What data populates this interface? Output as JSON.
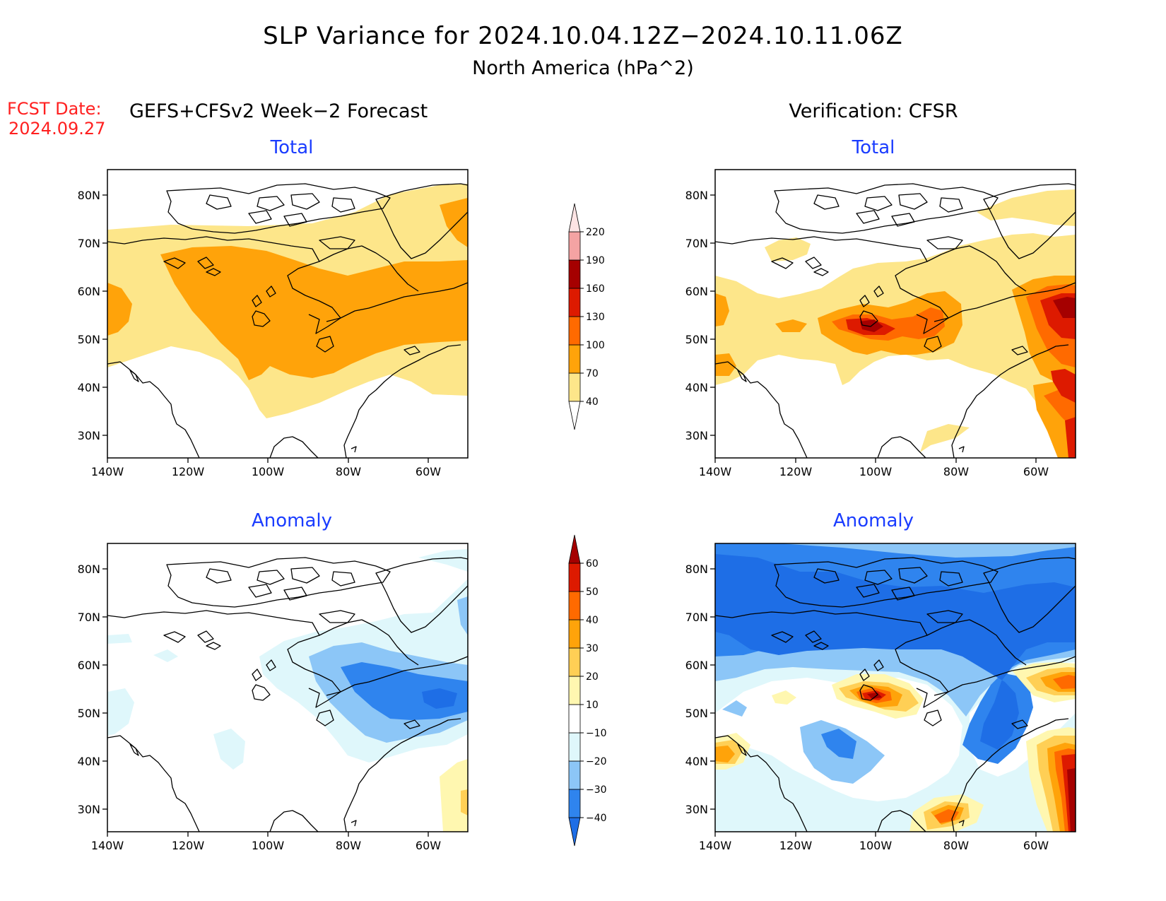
{
  "header": {
    "title": "SLP Variance for 2024.10.04.12Z−2024.10.11.06Z",
    "subtitle": "North America (hPa^2)",
    "fcst_label": "FCST Date:",
    "fcst_date": "2024.09.27",
    "left_heading": "GEFS+CFSv2 Week−2 Forecast",
    "right_heading": "Verification: CFSR"
  },
  "panels": {
    "top_left_title": "Total",
    "top_right_title": "Total",
    "bottom_left_title": "Anomaly",
    "bottom_right_title": "Anomaly"
  },
  "axes": {
    "lon_ticks": [
      "140W",
      "120W",
      "100W",
      "80W",
      "60W"
    ],
    "lat_ticks": [
      "80N",
      "70N",
      "60N",
      "50N",
      "40N",
      "30N"
    ]
  },
  "colorbars": {
    "total": {
      "labels": [
        "40",
        "70",
        "100",
        "130",
        "160",
        "190",
        "220"
      ],
      "colors": [
        "#fde68a",
        "#ffa30a",
        "#ff6a00",
        "#dd1a00",
        "#a50000",
        "#f4a3a3",
        "#fde4e4"
      ]
    },
    "anomaly": {
      "labels": [
        "−40",
        "−30",
        "−20",
        "−10",
        "10",
        "20",
        "30",
        "40",
        "50",
        "60"
      ],
      "colors": [
        "#1e6ee6",
        "#2f84ee",
        "#8cc6f7",
        "#dff7fb",
        "#ffffff",
        "#fff7b0",
        "#ffcf55",
        "#ffa30a",
        "#ff6a00",
        "#dd1a00",
        "#a50000"
      ]
    }
  },
  "fill_colors": {
    "total": {
      "t40": "#fde68a",
      "t70": "#ffa30a",
      "t100": "#ff6a00",
      "t130": "#dd1a00",
      "t160": "#a50000"
    },
    "anomaly": {
      "n40": "#1e6ee6",
      "n30": "#2f84ee",
      "n20": "#8cc6f7",
      "n10": "#dff7fb",
      "p10": "#fff7b0",
      "p20": "#ffcf55",
      "p30": "#ffa30a",
      "p40": "#ff6a00",
      "p50": "#dd1a00",
      "p60": "#a50000"
    }
  }
}
